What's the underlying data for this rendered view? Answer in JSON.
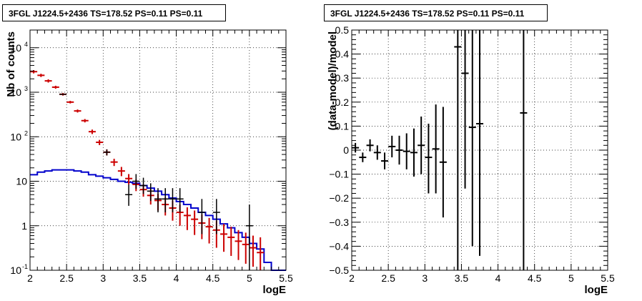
{
  "chart_data": [
    {
      "type": "histogram",
      "title": "3FGL J1224.5+2436 TS=178.52 PS=0.11 PS=0.11",
      "xlabel": "logE",
      "ylabel": "Nb of counts",
      "xlim": [
        2,
        5.5
      ],
      "ylim": [
        0.1,
        25000
      ],
      "yscale": "log",
      "grid": true,
      "x_ticks": [
        "2",
        "2.5",
        "3",
        "3.5",
        "4",
        "4.5",
        "5",
        "5.5"
      ],
      "y_ticks": [
        {
          "value": 0.1,
          "label": "10",
          "exp": "-1"
        },
        {
          "value": 1,
          "label": "1",
          "exp": ""
        },
        {
          "value": 10,
          "label": "10",
          "exp": ""
        },
        {
          "value": 100,
          "label": "10",
          "exp": "2"
        },
        {
          "value": 1000,
          "label": "10",
          "exp": "3"
        },
        {
          "value": 10000,
          "label": "10",
          "exp": "4"
        }
      ],
      "bin_edges": [
        2.0,
        2.1,
        2.2,
        2.3,
        2.4,
        2.5,
        2.6,
        2.7,
        2.8,
        2.9,
        3.0,
        3.1,
        3.2,
        3.3,
        3.4,
        3.5,
        3.6,
        3.7,
        3.8,
        3.9,
        4.0,
        4.1,
        4.2,
        4.3,
        4.4,
        4.5,
        4.6,
        4.7,
        4.8,
        4.9,
        5.0,
        5.1,
        5.2,
        5.3,
        5.4,
        5.5
      ],
      "series": [
        {
          "kind": "model_histogram",
          "color": "#0000cc",
          "values": [
            14,
            16,
            17,
            18,
            18,
            18,
            17,
            16,
            14,
            13,
            12,
            11,
            10,
            9.5,
            9,
            8,
            7,
            6,
            5,
            4.2,
            3.5,
            3,
            2.5,
            2,
            1.7,
            1.4,
            1.1,
            0.9,
            0.7,
            0.55,
            0.4,
            0.3,
            0.15,
            0.1,
            0.1
          ]
        },
        {
          "kind": "model_points",
          "color": "#cc0000",
          "x": [
            2.05,
            2.15,
            2.25,
            2.35,
            2.45,
            2.55,
            2.65,
            2.75,
            2.85,
            2.95,
            3.05,
            3.15,
            3.25,
            3.35,
            3.45,
            3.55,
            3.65,
            3.75,
            3.85,
            3.95,
            4.05,
            4.15,
            4.25,
            4.35,
            4.45,
            4.55,
            4.65,
            4.75,
            4.85,
            4.95,
            5.05,
            5.15
          ],
          "y": [
            2900,
            2400,
            1800,
            1300,
            900,
            600,
            380,
            230,
            130,
            75,
            45,
            27,
            17,
            11.5,
            8.5,
            6.5,
            4.8,
            3.7,
            3.0,
            2.5,
            2.0,
            1.7,
            1.4,
            1.15,
            0.95,
            0.8,
            0.65,
            0.55,
            0.45,
            0.38,
            0.32,
            0.25
          ],
          "err_low": [
            2650,
            2200,
            1650,
            1200,
            840,
            560,
            350,
            210,
            115,
            65,
            38,
            22,
            13,
            8.5,
            6,
            4.5,
            3,
            2.2,
            1.7,
            1.3,
            1.0,
            0.8,
            0.62,
            0.5,
            0.4,
            0.32,
            0.26,
            0.21,
            0.17,
            0.14,
            0.12,
            0.1
          ],
          "err_high": [
            3150,
            2600,
            1950,
            1400,
            960,
            640,
            410,
            250,
            145,
            85,
            52,
            32,
            21,
            14.5,
            11,
            8.5,
            6.6,
            5.2,
            4.3,
            3.7,
            3.0,
            2.6,
            2.2,
            1.8,
            1.5,
            1.3,
            1.1,
            0.95,
            0.8,
            0.7,
            0.6,
            0.55
          ]
        },
        {
          "kind": "data_points",
          "color": "#000000",
          "x": [
            2.45,
            3.05,
            3.35,
            3.45,
            3.55,
            3.65,
            3.75,
            3.85,
            3.95,
            4.05,
            4.35,
            4.55,
            5.0
          ],
          "y": [
            900,
            45,
            5,
            10,
            8,
            6,
            4,
            4,
            4,
            4,
            2,
            2,
            1
          ],
          "err_low": [
            870,
            38,
            2.8,
            6.8,
            5.2,
            3.6,
            2,
            2,
            2,
            2,
            0.65,
            0.65,
            0.1
          ],
          "err_high": [
            930,
            52,
            8.5,
            14.5,
            12,
            9,
            7,
            7,
            7,
            7,
            4,
            4,
            3
          ]
        }
      ]
    },
    {
      "type": "scatter",
      "title": "3FGL J1224.5+2436 TS=178.52 PS=0.11 PS=0.11",
      "xlabel": "logE",
      "ylabel": "(data-model)/model",
      "xlim": [
        2,
        5.5
      ],
      "ylim": [
        -0.5,
        0.5
      ],
      "grid": true,
      "x_ticks": [
        "2",
        "2.5",
        "3",
        "3.5",
        "4",
        "4.5",
        "5",
        "5.5"
      ],
      "y_ticks": [
        "−0.5",
        "−0.4",
        "−0.3",
        "−0.2",
        "−0.1",
        "0",
        "0.1",
        "0.2",
        "0.3",
        "0.4",
        "0.5"
      ],
      "series": [
        {
          "kind": "residual_points",
          "color": "#000000",
          "x": [
            2.05,
            2.15,
            2.25,
            2.35,
            2.45,
            2.55,
            2.65,
            2.75,
            2.85,
            2.95,
            3.05,
            3.15,
            3.25,
            3.45,
            3.55,
            3.65,
            3.75,
            4.35
          ],
          "y": [
            0.01,
            -0.03,
            0.02,
            -0.01,
            -0.045,
            0.015,
            0.0,
            -0.005,
            -0.01,
            0.02,
            -0.03,
            0.005,
            -0.05,
            0.43,
            0.32,
            0.095,
            0.11,
            0.155
          ],
          "err_low": [
            -0.01,
            -0.05,
            -0.005,
            -0.04,
            -0.08,
            -0.03,
            -0.06,
            -0.08,
            -0.11,
            -0.1,
            -0.18,
            -0.18,
            -0.28,
            -0.5,
            -0.16,
            -0.4,
            -0.44,
            -0.5
          ],
          "err_high": [
            0.03,
            -0.01,
            0.045,
            0.02,
            -0.01,
            0.06,
            0.06,
            0.07,
            0.09,
            0.14,
            0.11,
            0.19,
            0.18,
            0.5,
            0.5,
            0.5,
            0.5,
            0.5
          ]
        }
      ]
    }
  ]
}
